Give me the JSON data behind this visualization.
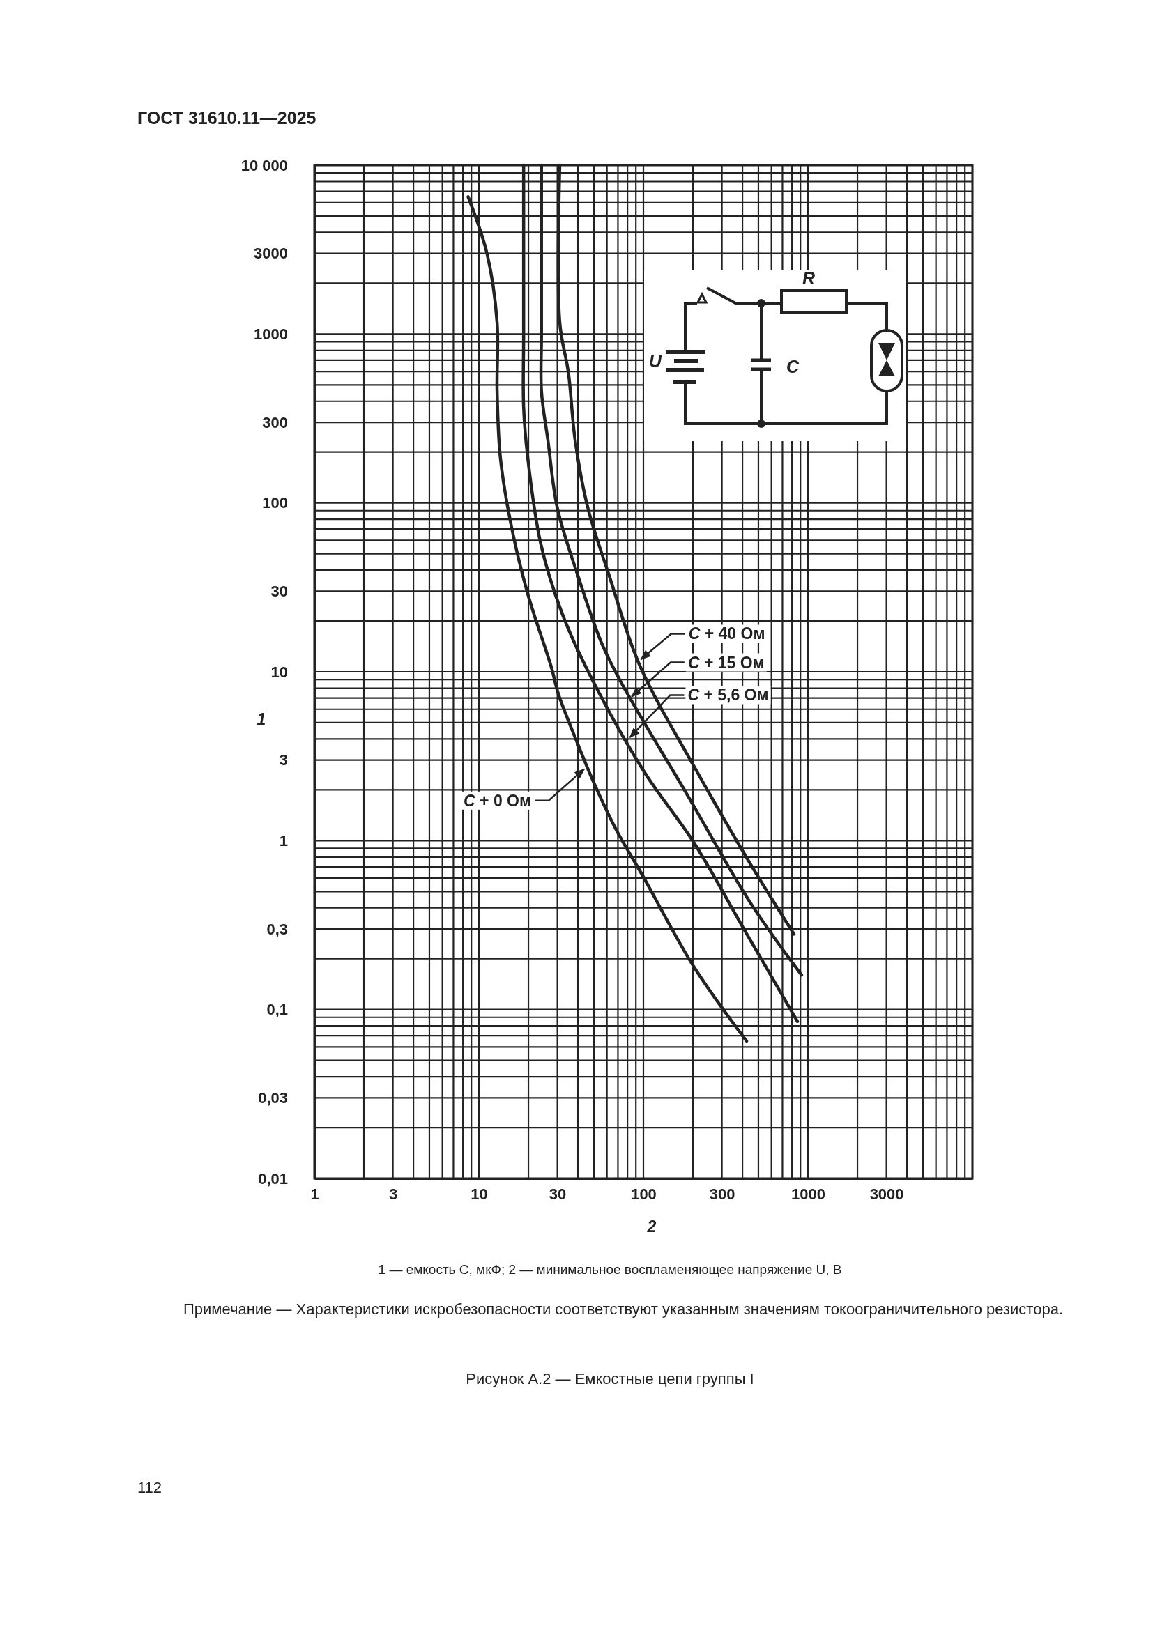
{
  "chart_data": {
    "type": "line",
    "title": "ГОСТ 31610.11—2025",
    "xlabel": "2",
    "ylabel": "1",
    "log": "xy",
    "grid": true,
    "line_style": "solid",
    "xlim": [
      1,
      10000
    ],
    "ylim": [
      0.01,
      10000
    ],
    "xticks": [
      1,
      {
        "value": 2,
        "label": null
      },
      3,
      {
        "value": 4,
        "label": null
      },
      {
        "value": 5,
        "label": null
      },
      {
        "value": 6,
        "label": null
      },
      {
        "value": 7,
        "label": null
      },
      {
        "value": 8,
        "label": null
      },
      {
        "value": 9,
        "label": null
      },
      10,
      {
        "value": 20,
        "label": null
      },
      30,
      {
        "value": 40,
        "label": null
      },
      {
        "value": 50,
        "label": null
      },
      {
        "value": 60,
        "label": null
      },
      {
        "value": 70,
        "label": null
      },
      {
        "value": 80,
        "label": null
      },
      {
        "value": 90,
        "label": null
      },
      100,
      {
        "value": 200,
        "label": null
      },
      300,
      {
        "value": 400,
        "label": null
      },
      {
        "value": 500,
        "label": null
      },
      {
        "value": 600,
        "label": null
      },
      {
        "value": 700,
        "label": null
      },
      {
        "value": 800,
        "label": null
      },
      {
        "value": 900,
        "label": null
      },
      1000,
      {
        "value": 2000,
        "label": null
      },
      3000,
      {
        "value": 4000,
        "label": null
      },
      {
        "value": 5000,
        "label": null
      },
      {
        "value": 6000,
        "label": null
      },
      {
        "value": 7000,
        "label": null
      },
      {
        "value": 8000,
        "label": null
      },
      {
        "value": 9000,
        "label": null
      },
      {
        "value": 10000,
        "label": null
      }
    ],
    "yticks": [
      {
        "value": 0.01,
        "label": "0,01"
      },
      {
        "value": 0.02,
        "label": null
      },
      {
        "value": 0.03,
        "label": "0,03"
      },
      {
        "value": 0.04,
        "label": null
      },
      {
        "value": 0.05,
        "label": null
      },
      {
        "value": 0.06,
        "label": null
      },
      {
        "value": 0.07,
        "label": null
      },
      {
        "value": 0.08,
        "label": null
      },
      {
        "value": 0.09,
        "label": null
      },
      {
        "value": 0.1,
        "label": "0,1"
      },
      {
        "value": 0.2,
        "label": null
      },
      {
        "value": 0.3,
        "label": "0,3"
      },
      {
        "value": 0.4,
        "label": null
      },
      {
        "value": 0.5,
        "label": null
      },
      {
        "value": 0.6,
        "label": null
      },
      {
        "value": 0.7,
        "label": null
      },
      {
        "value": 0.8,
        "label": null
      },
      {
        "value": 0.9,
        "label": null
      },
      1,
      {
        "value": 2,
        "label": null
      },
      3,
      {
        "value": 4,
        "label": null
      },
      {
        "value": 5,
        "label": null
      },
      {
        "value": 6,
        "label": null
      },
      {
        "value": 7,
        "label": null
      },
      {
        "value": 8,
        "label": null
      },
      {
        "value": 9,
        "label": null
      },
      10,
      {
        "value": 20,
        "label": null
      },
      30,
      {
        "value": 40,
        "label": null
      },
      {
        "value": 50,
        "label": null
      },
      {
        "value": 60,
        "label": null
      },
      {
        "value": 70,
        "label": null
      },
      {
        "value": 80,
        "label": null
      },
      {
        "value": 90,
        "label": null
      },
      100,
      {
        "value": 200,
        "label": null
      },
      300,
      {
        "value": 400,
        "label": null
      },
      {
        "value": 500,
        "label": null
      },
      {
        "value": 600,
        "label": null
      },
      {
        "value": 700,
        "label": null
      },
      {
        "value": 800,
        "label": null
      },
      {
        "value": 900,
        "label": null
      },
      1000,
      {
        "value": 2000,
        "label": null
      },
      3000,
      {
        "value": 4000,
        "label": null
      },
      {
        "value": 5000,
        "label": null
      },
      {
        "value": 6000,
        "label": null
      },
      {
        "value": 7000,
        "label": null
      },
      {
        "value": 8000,
        "label": null
      },
      {
        "value": 9000,
        "label": null
      },
      {
        "value": 10000,
        "label": "10 000"
      }
    ],
    "series": [
      {
        "color": "#222222",
        "x": [
          8.6,
          11.2,
          12.9,
          12.9,
          13.5,
          15.7,
          19.8,
          27.6,
          30.4,
          41,
          49,
          68,
          99,
          202,
          424
        ],
        "values": [
          6500,
          3000,
          1170,
          462,
          186,
          74,
          29,
          10.6,
          7.4,
          3.5,
          2.3,
          1.17,
          0.62,
          0.18,
          0.065
        ]
      },
      {
        "color": "#222222",
        "x": [
          18.7,
          18.7,
          18.7,
          19.8,
          23.8,
          31.6,
          46,
          100,
          202,
          408,
          864
        ],
        "values": [
          10000,
          1000,
          370,
          186,
          57,
          23,
          10.1,
          2.6,
          0.98,
          0.3,
          0.085
        ]
      },
      {
        "color": "#222222",
        "x": [
          24,
          24,
          24,
          26.3,
          30,
          40,
          56,
          76,
          183,
          446,
          915
        ],
        "values": [
          10000,
          1000,
          460,
          233,
          93,
          37,
          14.6,
          8.1,
          1.9,
          0.43,
          0.16
        ]
      },
      {
        "color": "#222222",
        "x": [
          31,
          31,
          35,
          38.5,
          46,
          62,
          95,
          210,
          446,
          822
        ],
        "values": [
          10000,
          1170,
          590,
          233,
          93,
          37,
          10.9,
          2.6,
          0.73,
          0.28
        ]
      }
    ],
    "annotations": [
      {
        "text": "C + 40 Ом",
        "x": 95,
        "y": 11.7
      },
      {
        "text": "C + 15 Ом",
        "x": 83,
        "y": 7
      },
      {
        "text": "C + 5,6 Ом",
        "x": 81,
        "y": 4
      },
      {
        "text": "C + 0 Ом",
        "x": 44.5,
        "y": 2.7
      },
      "1 — емкость C, мкФ; 2 — минимальное воспламеняющее напряжение U, В",
      "Примечание — Характеристики искробезопасности соответствуют указанным значениям токоограничительного резистора.",
      "Рисунок А.2 — Емкостные цепи группы I",
      "112",
      "R",
      "U",
      "C"
    ]
  }
}
